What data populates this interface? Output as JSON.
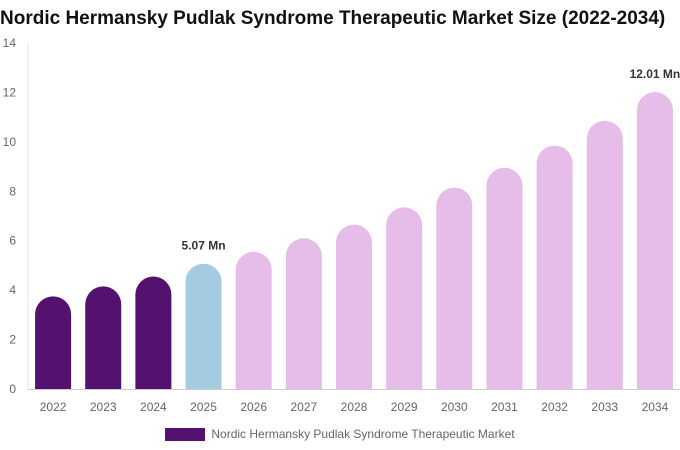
{
  "chart_data": {
    "type": "bar",
    "title": "Nordic Hermansky Pudlak Syndrome Therapeutic Market Size (2022-2034)",
    "xlabel": "",
    "ylabel": "",
    "categories": [
      "2022",
      "2023",
      "2024",
      "2025",
      "2026",
      "2027",
      "2028",
      "2029",
      "2030",
      "2031",
      "2032",
      "2033",
      "2034"
    ],
    "series": [
      {
        "name": "Nordic Hermansky Pudlak Syndrome Therapeutic Market",
        "values": [
          3.75,
          4.15,
          4.55,
          5.07,
          5.55,
          6.1,
          6.65,
          7.35,
          8.15,
          8.95,
          9.85,
          10.85,
          12.01
        ]
      }
    ],
    "ylim": [
      0,
      14
    ],
    "yticks": [
      "0",
      "2",
      "4",
      "6",
      "8",
      "10",
      "12",
      "14"
    ],
    "data_labels": [
      {
        "category": "2025",
        "text": "5.07 Mn"
      },
      {
        "category": "2034",
        "text": "12.01 Mn"
      }
    ],
    "bar_colors": {
      "historical": "#541270",
      "base_year": "#a4cbdf",
      "forecast": "#e6bce8"
    },
    "legend_color": "#541270",
    "legend_position": "bottom",
    "grid": false
  }
}
